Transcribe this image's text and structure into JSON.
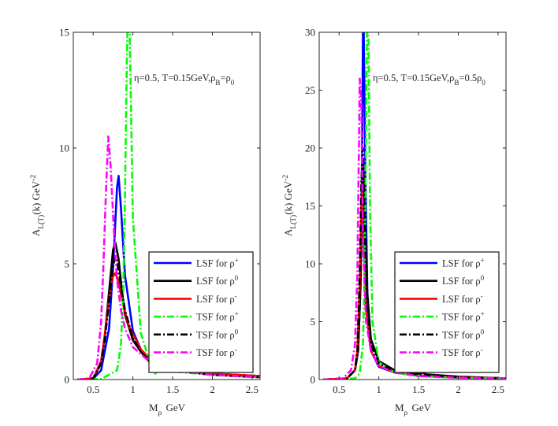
{
  "colors": {
    "blue": "#0000ff",
    "black": "#000000",
    "red": "#ff0000",
    "green": "#00ff00",
    "magenta": "#ff00ff"
  },
  "chart_data": [
    {
      "type": "line",
      "panel": "left",
      "annotation": "η=0.5, T=0.15GeV,ρB=ρ0",
      "xlabel": "Mρ GeV",
      "ylabel": "AL(T)(k) GeV^-2",
      "xlim": [
        0.25,
        2.6
      ],
      "ylim": [
        0,
        15
      ],
      "x_ticks": [
        0.5,
        1,
        1.5,
        2,
        2.5
      ],
      "x_tick_labels": [
        "0.5",
        "1",
        "1.5",
        "2",
        "2.5"
      ],
      "y_ticks": [
        0,
        5,
        10,
        15
      ],
      "y_tick_labels": [
        "0",
        "5",
        "10",
        "15"
      ],
      "legend_position": "lower-right",
      "series": [
        {
          "name": "LSF for ρ+",
          "color": "blue",
          "dash": "solid",
          "x": [
            0.3,
            0.5,
            0.6,
            0.7,
            0.75,
            0.8,
            0.82,
            0.85,
            0.9,
            1.0,
            1.1,
            1.2,
            1.3,
            1.5,
            2.0,
            2.6
          ],
          "y": [
            0,
            0.03,
            0.4,
            2.2,
            4.8,
            8.3,
            8.8,
            7.4,
            4.5,
            2.1,
            1.3,
            0.9,
            0.6,
            0.4,
            0.25,
            0.15
          ]
        },
        {
          "name": "LSF for ρ0",
          "color": "black",
          "dash": "solid",
          "x": [
            0.3,
            0.5,
            0.6,
            0.65,
            0.7,
            0.75,
            0.78,
            0.82,
            0.86,
            0.9,
            1.0,
            1.1,
            1.2,
            1.25,
            1.28,
            1.32,
            1.5,
            2.0,
            2.6
          ],
          "y": [
            0,
            0.05,
            0.7,
            2,
            3.8,
            5.6,
            5.9,
            5.2,
            3.9,
            2.8,
            1.7,
            1.2,
            0.85,
            0.8,
            1.0,
            0.75,
            0.45,
            0.25,
            0.15
          ]
        },
        {
          "name": "LSF for ρ-",
          "color": "red",
          "dash": "solid",
          "x": [
            0.3,
            0.5,
            0.6,
            0.65,
            0.7,
            0.74,
            0.78,
            0.82,
            0.88,
            0.95,
            1.1,
            1.25,
            1.5,
            2.0,
            2.6
          ],
          "y": [
            0,
            0.05,
            0.8,
            2,
            3.5,
            4.4,
            4.6,
            4.2,
            3.2,
            2.3,
            1.3,
            0.8,
            0.45,
            0.25,
            0.15
          ]
        },
        {
          "name": "TSF for ρ+",
          "color": "green",
          "dash": "dashdot",
          "x": [
            0.3,
            0.6,
            0.8,
            0.85,
            0.88,
            0.9,
            0.92,
            0.93,
            0.96,
            1.0,
            1.1,
            1.2,
            1.25,
            1.28,
            1.35,
            1.5,
            2.0,
            2.6
          ],
          "y": [
            0,
            0.02,
            0.4,
            1.5,
            4,
            8,
            13,
            15,
            15,
            7,
            2,
            0.9,
            0.6,
            0.25,
            0.45,
            0.35,
            0.2,
            0.1
          ]
        },
        {
          "name": "TSF for ρ0",
          "color": "black",
          "dash": "dashdot",
          "x": [
            0.3,
            0.5,
            0.6,
            0.65,
            0.7,
            0.75,
            0.78,
            0.8,
            0.85,
            0.9,
            1.0,
            1.1,
            1.2,
            1.3,
            1.5,
            2.0,
            2.6
          ],
          "y": [
            0,
            0.05,
            0.7,
            1.8,
            3.4,
            4.9,
            5.3,
            5.1,
            4.0,
            3.0,
            1.8,
            1.2,
            0.8,
            0.6,
            0.4,
            0.2,
            0.1
          ]
        },
        {
          "name": "TSF for ρ-",
          "color": "magenta",
          "dash": "dashdot",
          "x": [
            0.3,
            0.45,
            0.55,
            0.6,
            0.63,
            0.66,
            0.69,
            0.72,
            0.76,
            0.8,
            0.85,
            0.9,
            1.0,
            1.2,
            1.5,
            2.0,
            2.6
          ],
          "y": [
            0,
            0.05,
            0.7,
            2.5,
            5,
            8,
            10.5,
            9.2,
            6.5,
            4.3,
            3,
            2.2,
            1.4,
            0.8,
            0.4,
            0.2,
            0.1
          ]
        }
      ]
    },
    {
      "type": "line",
      "panel": "right",
      "annotation": "η=0.5, T=0.15GeV,ρB=0.5ρ0",
      "xlabel": "Mρ GeV",
      "ylabel": "AL(T)(k) GeV^-2",
      "xlim": [
        0.25,
        2.6
      ],
      "ylim": [
        0,
        30
      ],
      "x_ticks": [
        0.5,
        1,
        1.5,
        2,
        2.5
      ],
      "x_tick_labels": [
        "0.5",
        "1",
        "1.5",
        "2",
        "2.5"
      ],
      "y_ticks": [
        0,
        5,
        10,
        15,
        20,
        25,
        30
      ],
      "y_tick_labels": [
        "0",
        "5",
        "10",
        "15",
        "20",
        "25",
        "30"
      ],
      "legend_position": "lower-right",
      "series": [
        {
          "name": "LSF for ρ+",
          "color": "blue",
          "dash": "solid",
          "x": [
            0.3,
            0.6,
            0.7,
            0.74,
            0.77,
            0.79,
            0.8,
            0.81,
            0.83,
            0.86,
            0.9,
            1.0,
            1.2,
            1.5,
            2.0,
            2.6
          ],
          "y": [
            0,
            0.1,
            0.8,
            2.5,
            8,
            20,
            30,
            30,
            18,
            6,
            2.5,
            1.1,
            0.6,
            0.35,
            0.2,
            0.1
          ]
        },
        {
          "name": "LSF for ρ0",
          "color": "black",
          "dash": "solid",
          "x": [
            0.3,
            0.6,
            0.7,
            0.74,
            0.77,
            0.79,
            0.8,
            0.82,
            0.85,
            0.9,
            1.0,
            1.2,
            1.5,
            1.55,
            1.6,
            2.0,
            2.6
          ],
          "y": [
            0,
            0.1,
            0.8,
            2.5,
            8,
            16,
            18.5,
            15,
            8,
            3.5,
            1.6,
            0.8,
            0.5,
            0.6,
            0.45,
            0.25,
            0.1
          ]
        },
        {
          "name": "LSF for ρ-",
          "color": "red",
          "dash": "solid",
          "x": [
            0.3,
            0.6,
            0.7,
            0.73,
            0.76,
            0.78,
            0.79,
            0.81,
            0.84,
            0.9,
            1.0,
            1.2,
            1.5,
            2.0,
            2.6
          ],
          "y": [
            0,
            0.1,
            0.8,
            2.5,
            8,
            15,
            16.5,
            12,
            6,
            2.5,
            1.2,
            0.6,
            0.35,
            0.2,
            0.1
          ]
        },
        {
          "name": "TSF for ρ+",
          "color": "green",
          "dash": "dashdot",
          "x": [
            0.3,
            0.7,
            0.76,
            0.8,
            0.82,
            0.84,
            0.85,
            0.87,
            0.89,
            0.92,
            1.0,
            1.2,
            1.5,
            2.0,
            2.6
          ],
          "y": [
            0,
            0.1,
            0.5,
            3,
            9,
            22,
            30,
            30,
            15,
            5,
            1.5,
            0.6,
            0.3,
            0.15,
            0.1
          ]
        },
        {
          "name": "TSF for ρ0",
          "color": "black",
          "dash": "dashdot",
          "x": [
            0.3,
            0.6,
            0.7,
            0.73,
            0.76,
            0.78,
            0.8,
            0.82,
            0.85,
            0.9,
            1.0,
            1.2,
            1.5,
            2.0,
            2.6
          ],
          "y": [
            0,
            0.1,
            0.8,
            2.5,
            9,
            17,
            20,
            14,
            7,
            3,
            1.4,
            0.7,
            0.4,
            0.2,
            0.1
          ]
        },
        {
          "name": "TSF for ρ-",
          "color": "magenta",
          "dash": "dashdot",
          "x": [
            0.3,
            0.55,
            0.65,
            0.7,
            0.73,
            0.75,
            0.76,
            0.78,
            0.8,
            0.84,
            0.9,
            1.0,
            1.2,
            1.5,
            2.0,
            2.6
          ],
          "y": [
            0,
            0.1,
            0.8,
            3,
            9,
            20,
            26,
            24,
            12,
            5,
            2.5,
            1.2,
            0.6,
            0.3,
            0.15,
            0.1
          ]
        }
      ]
    }
  ]
}
